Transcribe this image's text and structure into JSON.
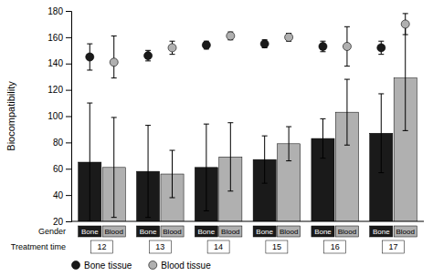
{
  "chart_data": {
    "type": "bar",
    "ylabel": "Biocompatibility",
    "categories": [
      12,
      13,
      14,
      15,
      16,
      17
    ],
    "ylim": [
      20,
      180
    ],
    "yticks": [
      20,
      40,
      60,
      80,
      100,
      120,
      140,
      160,
      180
    ],
    "grid": false,
    "legend": "bottom",
    "gender_label": "Gender",
    "treatment_label": "Treatment time",
    "series": [
      {
        "type": "bar",
        "label": "Bone",
        "color": "#1a1a1a",
        "values": [
          65,
          58,
          61,
          67,
          83,
          87
        ],
        "errors": [
          45,
          35,
          33,
          18,
          15,
          30
        ]
      },
      {
        "type": "bar",
        "label": "Blood",
        "color": "#b0b0b0",
        "values": [
          61,
          56,
          69,
          79,
          103,
          129
        ],
        "errors": [
          38,
          18,
          26,
          13,
          25,
          40
        ]
      },
      {
        "type": "scatter",
        "name": "Bone tissue",
        "color": "#1a1a1a",
        "marker": "circle",
        "values": [
          145,
          146,
          154,
          155,
          153,
          152
        ],
        "errors_low": [
          10,
          4,
          3,
          3,
          4,
          5
        ],
        "errors_high": [
          10,
          4,
          3,
          3,
          4,
          5
        ]
      },
      {
        "type": "scatter",
        "name": "Blood tissue",
        "color": "#b0b0b0",
        "marker": "circle",
        "values": [
          141,
          152,
          161,
          160,
          153,
          170
        ],
        "errors_low": [
          12,
          5,
          3,
          3,
          15,
          8
        ],
        "errors_high": [
          20,
          5,
          3,
          3,
          15,
          8
        ]
      }
    ]
  }
}
